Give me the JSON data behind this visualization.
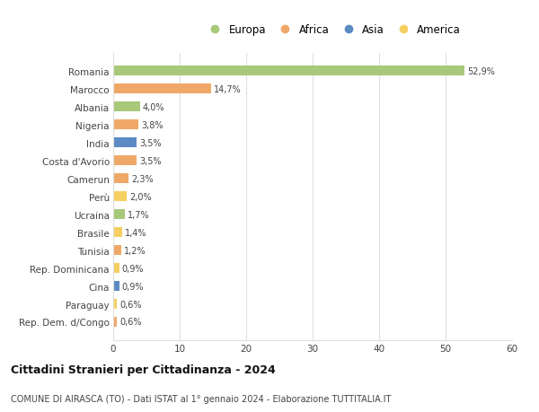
{
  "categories": [
    "Rep. Dem. d/Congo",
    "Paraguay",
    "Cina",
    "Rep. Dominicana",
    "Tunisia",
    "Brasile",
    "Ucraina",
    "Perù",
    "Camerun",
    "Costa d'Avorio",
    "India",
    "Nigeria",
    "Albania",
    "Marocco",
    "Romania"
  ],
  "values": [
    0.6,
    0.6,
    0.9,
    0.9,
    1.2,
    1.4,
    1.7,
    2.0,
    2.3,
    3.5,
    3.5,
    3.8,
    4.0,
    14.7,
    52.9
  ],
  "labels": [
    "0,6%",
    "0,6%",
    "0,9%",
    "0,9%",
    "1,2%",
    "1,4%",
    "1,7%",
    "2,0%",
    "2,3%",
    "3,5%",
    "3,5%",
    "3,8%",
    "4,0%",
    "14,7%",
    "52,9%"
  ],
  "colors": [
    "#f0a868",
    "#f5d060",
    "#5b8ac4",
    "#f5d060",
    "#f0a868",
    "#f5d060",
    "#a8c87a",
    "#f5d060",
    "#f0a868",
    "#f0a868",
    "#5b8ac4",
    "#f0a868",
    "#a8c87a",
    "#f0a868",
    "#a8c87a"
  ],
  "legend_labels": [
    "Europa",
    "Africa",
    "Asia",
    "America"
  ],
  "legend_colors": [
    "#a8c87a",
    "#f0a868",
    "#5b8ac4",
    "#f5d060"
  ],
  "title": "Cittadini Stranieri per Cittadinanza - 2024",
  "subtitle": "COMUNE DI AIRASCA (TO) - Dati ISTAT al 1° gennaio 2024 - Elaborazione TUTTITALIA.IT",
  "xlim": [
    0,
    60
  ],
  "xticks": [
    0,
    10,
    20,
    30,
    40,
    50,
    60
  ],
  "bg_color": "#ffffff",
  "grid_color": "#e0e0e0",
  "bar_height": 0.55
}
